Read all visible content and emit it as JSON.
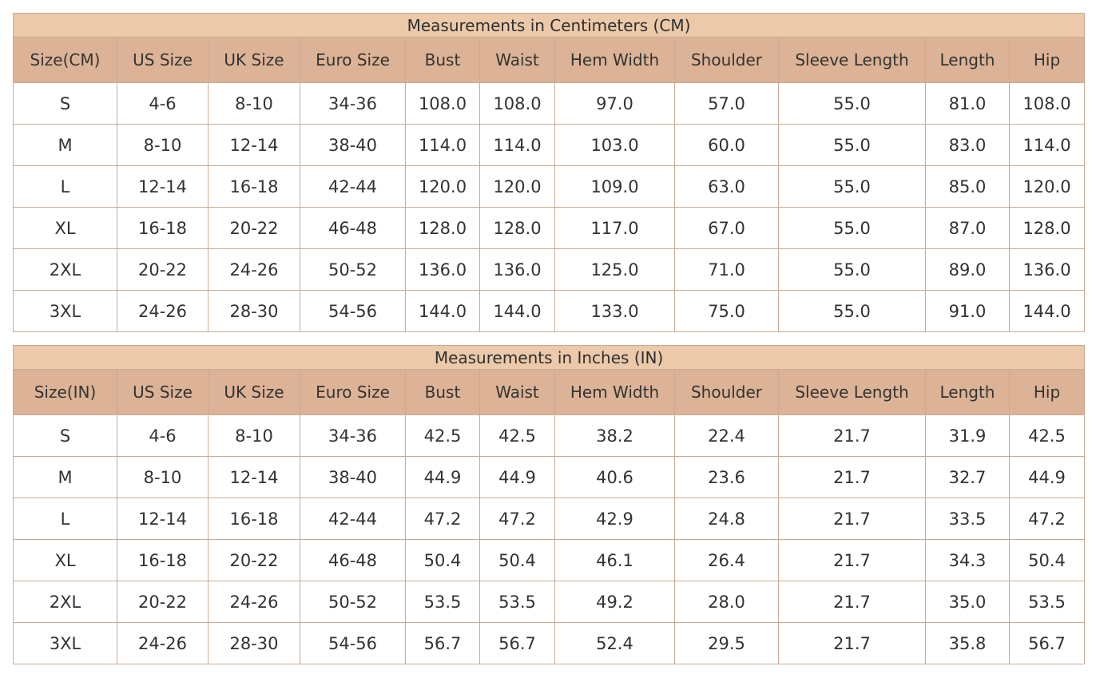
{
  "columns": [
    "US Size",
    "UK Size",
    "Euro Size",
    "Bust",
    "Waist",
    "Hem Width",
    "Shoulder",
    "Sleeve Length",
    "Length",
    "Hip"
  ],
  "tables": [
    {
      "title": "Measurements in Centimeters (CM)",
      "first_col": "Size(CM)",
      "rows": [
        [
          "S",
          "4-6",
          "8-10",
          "34-36",
          "108.0",
          "108.0",
          "97.0",
          "57.0",
          "55.0",
          "81.0",
          "108.0"
        ],
        [
          "M",
          "8-10",
          "12-14",
          "38-40",
          "114.0",
          "114.0",
          "103.0",
          "60.0",
          "55.0",
          "83.0",
          "114.0"
        ],
        [
          "L",
          "12-14",
          "16-18",
          "42-44",
          "120.0",
          "120.0",
          "109.0",
          "63.0",
          "55.0",
          "85.0",
          "120.0"
        ],
        [
          "XL",
          "16-18",
          "20-22",
          "46-48",
          "128.0",
          "128.0",
          "117.0",
          "67.0",
          "55.0",
          "87.0",
          "128.0"
        ],
        [
          "2XL",
          "20-22",
          "24-26",
          "50-52",
          "136.0",
          "136.0",
          "125.0",
          "71.0",
          "55.0",
          "89.0",
          "136.0"
        ],
        [
          "3XL",
          "24-26",
          "28-30",
          "54-56",
          "144.0",
          "144.0",
          "133.0",
          "75.0",
          "55.0",
          "91.0",
          "144.0"
        ]
      ]
    },
    {
      "title": "Measurements in Inches (IN)",
      "first_col": "Size(IN)",
      "rows": [
        [
          "S",
          "4-6",
          "8-10",
          "34-36",
          "42.5",
          "42.5",
          "38.2",
          "22.4",
          "21.7",
          "31.9",
          "42.5"
        ],
        [
          "M",
          "8-10",
          "12-14",
          "38-40",
          "44.9",
          "44.9",
          "40.6",
          "23.6",
          "21.7",
          "32.7",
          "44.9"
        ],
        [
          "L",
          "12-14",
          "16-18",
          "42-44",
          "47.2",
          "47.2",
          "42.9",
          "24.8",
          "21.7",
          "33.5",
          "47.2"
        ],
        [
          "XL",
          "16-18",
          "20-22",
          "46-48",
          "50.4",
          "50.4",
          "46.1",
          "26.4",
          "21.7",
          "34.3",
          "50.4"
        ],
        [
          "2XL",
          "20-22",
          "24-26",
          "50-52",
          "53.5",
          "53.5",
          "49.2",
          "28.0",
          "21.7",
          "35.0",
          "53.5"
        ],
        [
          "3XL",
          "24-26",
          "28-30",
          "54-56",
          "56.7",
          "56.7",
          "52.4",
          "29.5",
          "21.7",
          "35.8",
          "56.7"
        ]
      ]
    }
  ],
  "colors": {
    "title_bg": "#ebc9a9",
    "header_bg": "#dcb396",
    "border": "#c9ab95"
  }
}
